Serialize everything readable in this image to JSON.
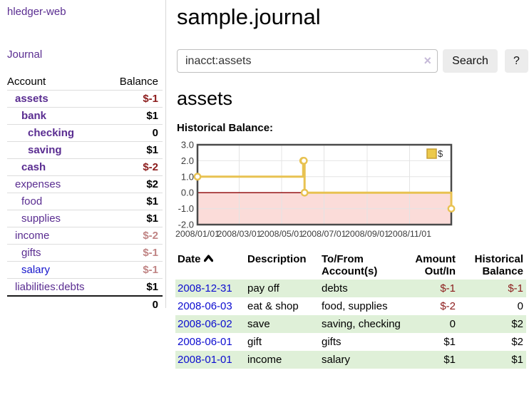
{
  "app": {
    "title": "hledger-web",
    "nav_journal": "Journal"
  },
  "sidebar": {
    "header": {
      "account": "Account",
      "balance": "Balance"
    },
    "accounts": [
      {
        "name": "assets",
        "balance": "$-1"
      },
      {
        "name": "bank",
        "balance": "$1"
      },
      {
        "name": "checking",
        "balance": "0"
      },
      {
        "name": "saving",
        "balance": "$1"
      },
      {
        "name": "cash",
        "balance": "$-2"
      },
      {
        "name": "expenses",
        "balance": "$2"
      },
      {
        "name": "food",
        "balance": "$1"
      },
      {
        "name": "supplies",
        "balance": "$1"
      },
      {
        "name": "income",
        "balance": "$-2"
      },
      {
        "name": "gifts",
        "balance": "$-1"
      },
      {
        "name": "salary",
        "balance": "$-1"
      },
      {
        "name": "liabilities:debts",
        "balance": "$1"
      }
    ],
    "total": "0"
  },
  "main": {
    "title": "sample.journal",
    "search": {
      "value": "inacct:assets",
      "clear": "×",
      "button": "Search",
      "help": "?"
    },
    "account_heading": "assets",
    "chart_label": "Historical Balance:"
  },
  "chart_data": {
    "type": "line",
    "step": true,
    "title": "Historical Balance:",
    "series": [
      {
        "name": "$",
        "color": "#e8c251",
        "points": [
          [
            "2008-01-01",
            1
          ],
          [
            "2008-06-01",
            2
          ],
          [
            "2008-06-02",
            2
          ],
          [
            "2008-06-03",
            0
          ],
          [
            "2008-12-31",
            -1
          ]
        ]
      }
    ],
    "x_range": [
      "2008-01-01",
      "2008-12-31"
    ],
    "x_ticks": [
      "2008/01/01",
      "2008/03/01",
      "2008/05/01",
      "2008/07/01",
      "2008/09/01",
      "2008/11/01"
    ],
    "y_ticks": [
      "3.0",
      "2.0",
      "1.0",
      "0.0",
      "-1.0",
      "-2.0"
    ],
    "ylim": [
      -2,
      3
    ],
    "grid": true,
    "legend": {
      "position": "top-right",
      "label": "$"
    },
    "negative_region_fill": "#fbdcd9",
    "zero_line_color": "#8b0000"
  },
  "register": {
    "columns": {
      "date": "Date",
      "description": "Description",
      "accounts": "To/From Account(s)",
      "amount": "Amount Out/In",
      "balance": "Historical Balance"
    },
    "rows": [
      {
        "date": "2008-12-31",
        "description": "pay off",
        "accounts": "debts",
        "amount": "$-1",
        "balance": "$-1"
      },
      {
        "date": "2008-06-03",
        "description": "eat & shop",
        "accounts": "food, supplies",
        "amount": "$-2",
        "balance": "0"
      },
      {
        "date": "2008-06-02",
        "description": "save",
        "accounts": "saving, checking",
        "amount": "0",
        "balance": "$2"
      },
      {
        "date": "2008-06-01",
        "description": "gift",
        "accounts": "gifts",
        "amount": "$1",
        "balance": "$2"
      },
      {
        "date": "2008-01-01",
        "description": "income",
        "accounts": "salary",
        "amount": "$1",
        "balance": "$1"
      }
    ]
  },
  "colors": {
    "link_purple": "#5a2d91",
    "link_blue": "#0c0cd0",
    "negative_strong": "#8c1c1c",
    "negative_dim": "#c08484",
    "row_stripe_green": "#dff0d8",
    "chart_gold": "#e8c251",
    "chart_negative_pink": "#fbdcd9",
    "chart_zero_line": "#8b0000"
  }
}
